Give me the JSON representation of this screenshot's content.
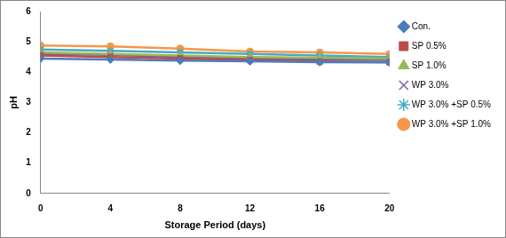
{
  "chart_data": {
    "type": "line",
    "x_label": "Storage Period (days)",
    "y_label": "pH",
    "x": [
      0,
      4,
      8,
      12,
      16,
      20
    ],
    "xlim": [
      0,
      20
    ],
    "xticks": [
      0,
      4,
      8,
      12,
      16,
      20
    ],
    "ylim": [
      0,
      6
    ],
    "yticks": [
      0,
      1,
      2,
      3,
      4,
      5,
      6
    ],
    "grid": false,
    "legend": "right",
    "series": [
      {
        "name": "Con.",
        "color": "#4a7ebb",
        "marker": "diamond",
        "values": [
          4.45,
          4.42,
          4.38,
          4.36,
          4.33,
          4.32
        ]
      },
      {
        "name": "SP 0.5%",
        "color": "#be4b48",
        "marker": "square",
        "values": [
          4.55,
          4.5,
          4.45,
          4.4,
          4.35,
          4.33
        ]
      },
      {
        "name": "SP 1.0%",
        "color": "#98b954",
        "marker": "triangle",
        "values": [
          4.65,
          4.6,
          4.55,
          4.5,
          4.48,
          4.45
        ]
      },
      {
        "name": "WP 3.0%",
        "color": "#7d60a0",
        "marker": "x",
        "values": [
          4.6,
          4.57,
          4.5,
          4.45,
          4.42,
          4.4
        ]
      },
      {
        "name": "WP 3.0% +SP 0.5%",
        "color": "#46aac5",
        "marker": "star",
        "values": [
          4.75,
          4.7,
          4.65,
          4.6,
          4.55,
          4.5
        ]
      },
      {
        "name": "WP 3.0% +SP 1.0%",
        "color": "#f79646",
        "marker": "circle",
        "values": [
          4.88,
          4.85,
          4.78,
          4.68,
          4.65,
          4.6
        ]
      }
    ]
  }
}
